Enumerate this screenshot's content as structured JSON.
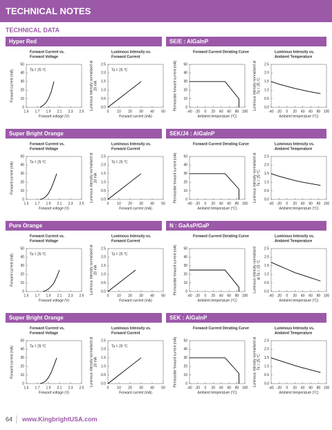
{
  "page": {
    "header": "TECHNICAL NOTES",
    "subheader": "TECHNICAL DATA",
    "page_number": "64",
    "url": "www.KingbrightUSA.com"
  },
  "sections": [
    {
      "name": "Hyper Red",
      "material": "SE/E : AlGaInP"
    },
    {
      "name": "Super Bright Orange",
      "material": "SEK/J4 : AlGaInP"
    },
    {
      "name": "Pure Orange",
      "material": "N : GaAsP/GaP"
    },
    {
      "name": "Super Bright Orange",
      "material": "SEK : AlGaInP"
    }
  ],
  "chart_data": [
    {
      "type": "line",
      "title": [
        "Forward Current vs.",
        "Forward Voltage"
      ],
      "x_label": "Forward voltage (V)",
      "y_label": [
        "Forward current (mA)"
      ],
      "annotation": "Ta = 25 °C",
      "color": "#000000",
      "x": [
        1.75,
        1.8,
        1.85,
        1.9,
        1.95,
        2.0
      ],
      "values": [
        0,
        2,
        5,
        10,
        18,
        30
      ],
      "xlim": [
        1.5,
        2.5
      ],
      "xticks": [
        1.5,
        1.7,
        1.9,
        2.1,
        2.3,
        2.5
      ],
      "ylim": [
        0,
        50
      ],
      "yticks": [
        0,
        10,
        20,
        30,
        40,
        50
      ]
    },
    {
      "type": "line",
      "title": [
        "Luminous Intensity vs.",
        "Forward Current"
      ],
      "x_label": "Forward current (mA)",
      "y_label": [
        "Luminous intensity normalised at",
        "20 mA"
      ],
      "annotation": "Ta = 25 °C",
      "color": "#000000",
      "x": [
        0,
        10,
        20,
        30
      ],
      "values": [
        0,
        0.5,
        1.0,
        1.5
      ],
      "xlim": [
        0,
        50
      ],
      "xticks": [
        0,
        10,
        20,
        30,
        40,
        50
      ],
      "ylim": [
        0,
        2.5
      ],
      "yticks": [
        {
          "value": 0,
          "label": "0.0"
        },
        0.5,
        {
          "value": 1,
          "label": "1.0"
        },
        1.5,
        {
          "value": 2,
          "label": "2.0"
        },
        2.5
      ]
    },
    {
      "type": "line",
      "title": [
        "Forward Current Derating  Curve"
      ],
      "x_label": "Ambient temperature (°C)",
      "y_label": [
        "Permissible forward current (mA)"
      ],
      "color": "#000000",
      "x": [
        -40,
        50,
        85,
        85
      ],
      "values": [
        30,
        30,
        10,
        0
      ],
      "xlim": [
        -40,
        100
      ],
      "xticks": [
        -40,
        -20,
        0,
        20,
        40,
        60,
        80,
        100
      ],
      "ylim": [
        0,
        50
      ],
      "yticks": [
        0,
        10,
        20,
        30,
        40,
        50
      ]
    },
    {
      "type": "line",
      "title": [
        "Luminous Intensity vs.",
        "Ambient Temperature"
      ],
      "x_label": "Ambient temperature (°C)",
      "y_label": [
        "Luminous intensity normalised at",
        "Ta = 25 °C"
      ],
      "color": "#000000",
      "x": [
        -40,
        -20,
        0,
        20,
        40,
        60,
        80,
        85
      ],
      "values": [
        1.5,
        1.35,
        1.22,
        1.1,
        1.0,
        0.9,
        0.82,
        0.8
      ],
      "xlim": [
        -40,
        100
      ],
      "xticks": [
        -40,
        -20,
        0,
        20,
        40,
        60,
        80,
        100
      ],
      "ylim": [
        0,
        2.5
      ],
      "yticks": [
        {
          "value": 0,
          "label": "0.0"
        },
        0.5,
        {
          "value": 1,
          "label": "1.0"
        },
        1.5,
        {
          "value": 2,
          "label": "2.0"
        },
        2.5
      ]
    },
    {
      "type": "line",
      "title": [
        "Forward Current vs.",
        "Forward Voltage"
      ],
      "x_label": "Forward voltage (V)",
      "y_label": [
        "Forward current (mA)"
      ],
      "annotation": "Ta = 25 °C",
      "color": "#000000",
      "x": [
        1.75,
        1.8,
        1.85,
        1.9,
        1.95,
        2.0,
        2.05
      ],
      "values": [
        0,
        1,
        3,
        7,
        13,
        21,
        30
      ],
      "xlim": [
        1.5,
        2.5
      ],
      "xticks": [
        1.5,
        1.7,
        1.9,
        2.1,
        2.3,
        2.5
      ],
      "ylim": [
        0,
        50
      ],
      "yticks": [
        0,
        10,
        20,
        30,
        40,
        50
      ]
    },
    {
      "type": "line",
      "title": [
        "Luminous Intensity vs.",
        "Forward Current"
      ],
      "x_label": "Forward current (mA)",
      "y_label": [
        "Luminous intensity normalised at",
        "20 mA"
      ],
      "annotation": "Ta = 25 °C",
      "color": "#000000",
      "x": [
        0,
        10,
        20,
        30
      ],
      "values": [
        0,
        0.5,
        1.0,
        1.5
      ],
      "xlim": [
        0,
        50
      ],
      "xticks": [
        0,
        10,
        20,
        30,
        40,
        50
      ],
      "ylim": [
        0,
        2.5
      ],
      "yticks": [
        {
          "value": 0,
          "label": "0.0"
        },
        0.5,
        {
          "value": 1,
          "label": "1.0"
        },
        1.5,
        {
          "value": 2,
          "label": "2.0"
        },
        2.5
      ]
    },
    {
      "type": "line",
      "title": [
        "Forward Current Derating  Curve"
      ],
      "x_label": "Ambient temperature (°C)",
      "y_label": [
        "Permissible forward current (mA)"
      ],
      "color": "#000000",
      "x": [
        -40,
        50,
        85,
        85
      ],
      "values": [
        30,
        30,
        12,
        0
      ],
      "xlim": [
        -40,
        100
      ],
      "xticks": [
        -40,
        -20,
        0,
        20,
        40,
        60,
        80,
        100
      ],
      "ylim": [
        0,
        50
      ],
      "yticks": [
        0,
        10,
        20,
        30,
        40,
        50
      ]
    },
    {
      "type": "line",
      "title": [
        "Luminous Intensity vs.",
        "Ambient Temperature"
      ],
      "x_label": "Ambient temperature (°C)",
      "y_label": [
        "Luminous intensity normalised at",
        "Ta = 25 °C"
      ],
      "color": "#000000",
      "x": [
        -40,
        -20,
        0,
        20,
        40,
        60,
        80,
        85
      ],
      "values": [
        1.5,
        1.35,
        1.22,
        1.1,
        1.0,
        0.92,
        0.84,
        0.82
      ],
      "xlim": [
        -40,
        100
      ],
      "xticks": [
        -40,
        -20,
        0,
        20,
        40,
        60,
        80,
        100
      ],
      "ylim": [
        0,
        2.5
      ],
      "yticks": [
        {
          "value": 0,
          "label": "0.0"
        },
        0.5,
        {
          "value": 1,
          "label": "1.0"
        },
        1.5,
        {
          "value": 2,
          "label": "2.0"
        },
        2.5
      ]
    },
    {
      "type": "line",
      "title": [
        "Forward Current vs.",
        "Forward Voltage"
      ],
      "x_label": "Forward voltage (V)",
      "y_label": [
        "Forward current (mA)"
      ],
      "annotation": "Ta = 25 °C",
      "color": "#000000",
      "x": [
        1.8,
        1.85,
        1.9,
        1.95,
        2.0,
        2.05,
        2.1
      ],
      "values": [
        0,
        1,
        3,
        6,
        10,
        17,
        25
      ],
      "xlim": [
        1.5,
        2.5
      ],
      "xticks": [
        1.5,
        1.7,
        1.9,
        2.1,
        2.3,
        2.5
      ],
      "ylim": [
        0,
        50
      ],
      "yticks": [
        0,
        10,
        20,
        30,
        40,
        50
      ]
    },
    {
      "type": "line",
      "title": [
        "Luminous Intensity vs.",
        "Forward Current"
      ],
      "x_label": "Forward current (mA)",
      "y_label": [
        "Luminous intensity normalised at",
        "20 mA"
      ],
      "annotation": "Ta = 25 °C",
      "color": "#000000",
      "x": [
        0,
        10,
        20,
        25
      ],
      "values": [
        0,
        0.5,
        1.0,
        1.25
      ],
      "xlim": [
        0,
        50
      ],
      "xticks": [
        0,
        10,
        20,
        30,
        40,
        50
      ],
      "ylim": [
        0,
        2.5
      ],
      "yticks": [
        {
          "value": 0,
          "label": "0.0"
        },
        0.5,
        {
          "value": 1,
          "label": "1.0"
        },
        1.5,
        {
          "value": 2,
          "label": "2.0"
        },
        2.5
      ]
    },
    {
      "type": "line",
      "title": [
        "Forward Current Derating  Curve"
      ],
      "x_label": "Ambient temperature (°C)",
      "y_label": [
        "Permissible forward current (mA)"
      ],
      "color": "#000000",
      "x": [
        -40,
        50,
        85,
        85
      ],
      "values": [
        25,
        25,
        5,
        0
      ],
      "xlim": [
        -40,
        100
      ],
      "xticks": [
        -40,
        -20,
        0,
        20,
        40,
        60,
        80,
        100
      ],
      "ylim": [
        0,
        50
      ],
      "yticks": [
        0,
        10,
        20,
        30,
        40,
        50
      ]
    },
    {
      "type": "line",
      "title": [
        "Luminous Intensity vs.",
        "Ambient Temperature"
      ],
      "x_label": "Ambient temperature (°C)",
      "y_label": [
        "Luminous intensity normalised",
        "at Ta = 25 °C"
      ],
      "color": "#000000",
      "x": [
        -40,
        -20,
        0,
        20,
        40,
        60,
        80,
        85
      ],
      "values": [
        1.7,
        1.5,
        1.3,
        1.1,
        0.95,
        0.8,
        0.65,
        0.6
      ],
      "xlim": [
        -40,
        100
      ],
      "xticks": [
        -40,
        -20,
        0,
        20,
        40,
        60,
        80,
        100
      ],
      "ylim": [
        0,
        2.5
      ],
      "yticks": [
        {
          "value": 0,
          "label": "0.0"
        },
        0.5,
        {
          "value": 1,
          "label": "1.0"
        },
        1.5,
        {
          "value": 2,
          "label": "2.0"
        },
        2.5
      ]
    },
    {
      "type": "line",
      "title": [
        "Forward Current vs.",
        "Forward Voltage"
      ],
      "x_label": "Forward voltage (V)",
      "y_label": [
        "Forward current (mA)"
      ],
      "annotation": "Ta = 25 °C",
      "color": "#000000",
      "x": [
        1.75,
        1.8,
        1.85,
        1.9,
        1.95,
        2.0,
        2.05
      ],
      "values": [
        0,
        1,
        3,
        7,
        13,
        21,
        30
      ],
      "xlim": [
        1.5,
        2.5
      ],
      "xticks": [
        1.5,
        1.7,
        1.9,
        2.1,
        2.3,
        2.5
      ],
      "ylim": [
        0,
        50
      ],
      "yticks": [
        0,
        10,
        20,
        30,
        40,
        50
      ]
    },
    {
      "type": "line",
      "title": [
        "Luminous Intensity vs.",
        "Forward Current"
      ],
      "x_label": "Forward current (mA)",
      "y_label": [
        "Luminous intensity normalised at",
        "20 mA"
      ],
      "annotation": "Ta = 25 °C",
      "color": "#000000",
      "x": [
        0,
        10,
        20,
        30
      ],
      "values": [
        0,
        0.5,
        1.0,
        1.5
      ],
      "xlim": [
        0,
        50
      ],
      "xticks": [
        0,
        10,
        20,
        30,
        40,
        50
      ],
      "ylim": [
        0,
        2.5
      ],
      "yticks": [
        {
          "value": 0,
          "label": "0.0"
        },
        0.5,
        {
          "value": 1,
          "label": "1.0"
        },
        1.5,
        {
          "value": 2,
          "label": "2.0"
        },
        2.5
      ]
    },
    {
      "type": "line",
      "title": [
        "Forward Current Derating  Curve"
      ],
      "x_label": "Ambient temperature (°C)",
      "y_label": [
        "Permissible forward current (mA)"
      ],
      "color": "#000000",
      "x": [
        -40,
        50,
        85,
        85
      ],
      "values": [
        30,
        30,
        12,
        0
      ],
      "xlim": [
        -40,
        100
      ],
      "xticks": [
        -40,
        -20,
        0,
        20,
        40,
        60,
        80,
        100
      ],
      "ylim": [
        0,
        50
      ],
      "yticks": [
        0,
        10,
        20,
        30,
        40,
        50
      ]
    },
    {
      "type": "line",
      "title": [
        "Luminous Intensity vs.",
        "Ambient Temperature"
      ],
      "x_label": "Ambient temperature (°C)",
      "y_label": [
        "Luminous intensity normalised at",
        "Ta = 25 °C"
      ],
      "color": "#000000",
      "x": [
        -40,
        -20,
        0,
        20,
        40,
        60,
        80,
        85
      ],
      "values": [
        1.5,
        1.35,
        1.2,
        1.05,
        0.92,
        0.8,
        0.68,
        0.65
      ],
      "xlim": [
        -40,
        100
      ],
      "xticks": [
        -40,
        -20,
        0,
        20,
        40,
        60,
        80,
        100
      ],
      "ylim": [
        0,
        2.5
      ],
      "yticks": [
        {
          "value": 0,
          "label": "0.0"
        },
        0.5,
        {
          "value": 1,
          "label": "1.0"
        },
        1.5,
        {
          "value": 2,
          "label": "2.0"
        },
        2.5
      ]
    }
  ]
}
